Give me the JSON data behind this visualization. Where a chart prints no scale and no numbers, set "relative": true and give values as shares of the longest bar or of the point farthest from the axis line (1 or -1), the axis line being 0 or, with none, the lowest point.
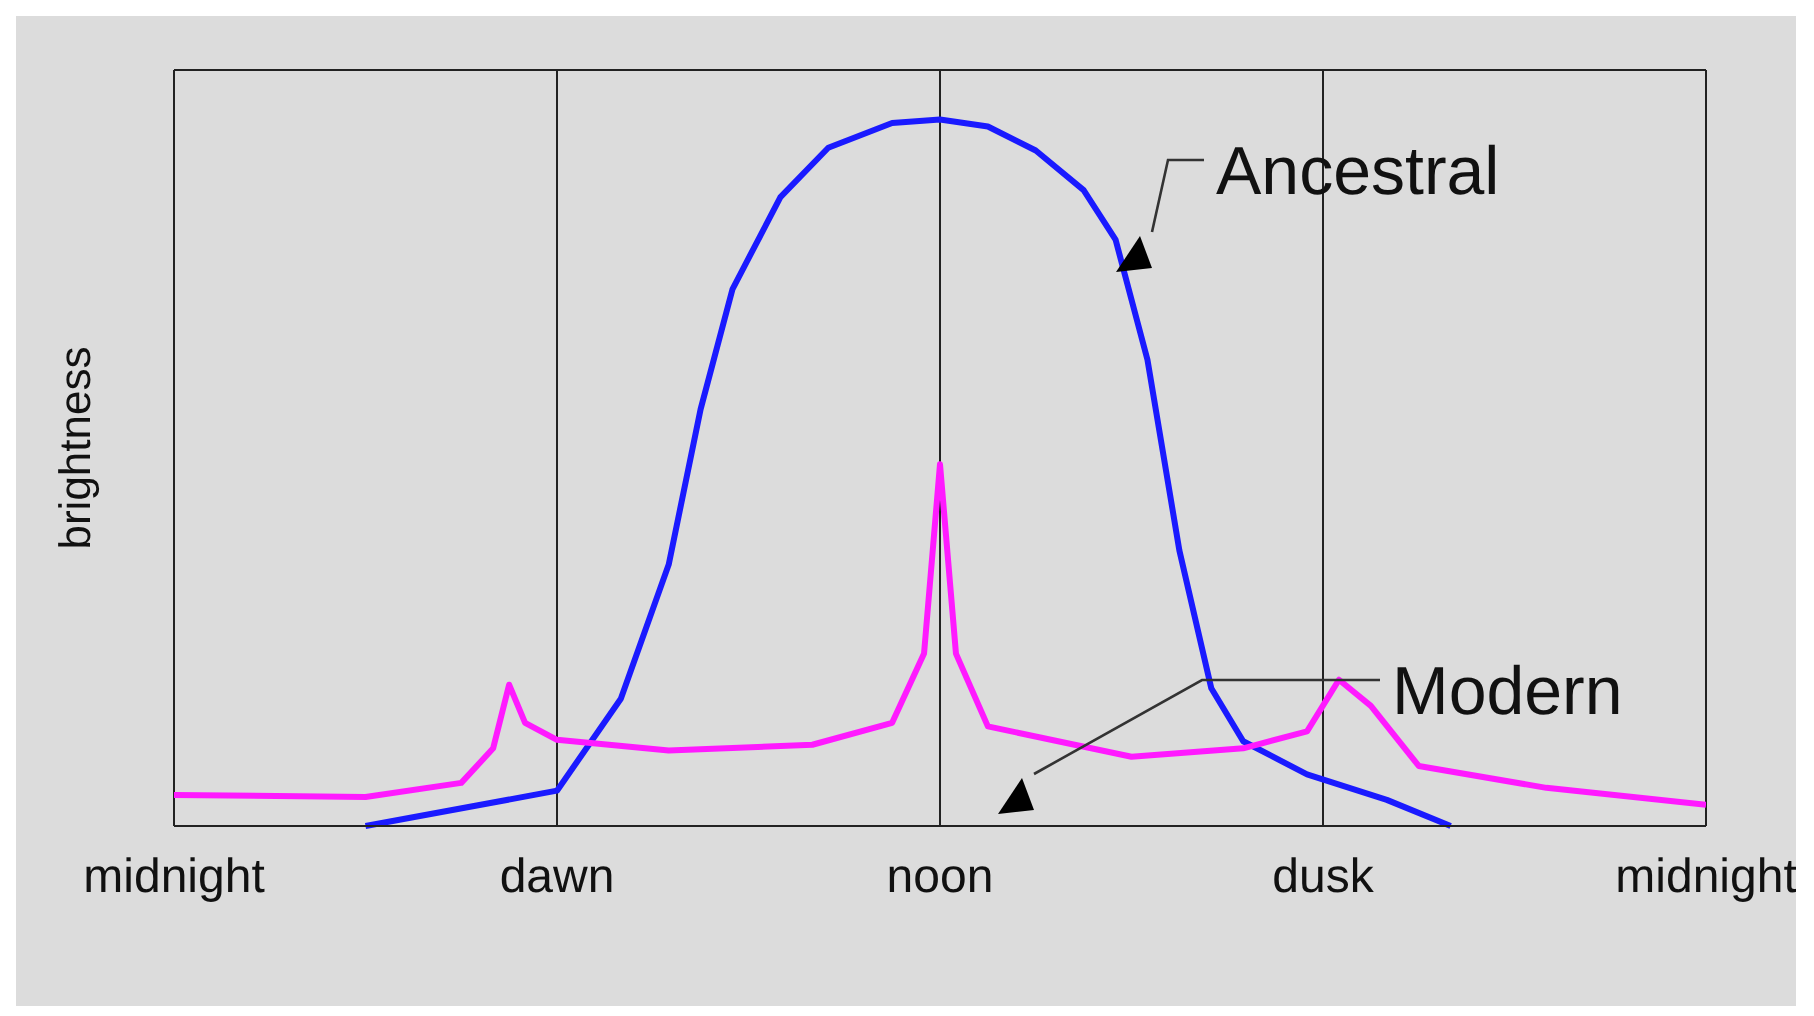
{
  "chart_data": {
    "type": "line",
    "ylabel": "brightness",
    "relative": true,
    "grid": "x",
    "legend": false,
    "marker": "none",
    "line_style": "solid",
    "categories": [
      "midnight",
      null,
      null,
      null,
      null,
      null,
      null,
      null,
      null,
      null,
      null,
      null,
      null,
      null,
      null,
      null,
      null,
      null,
      null,
      null,
      null,
      null,
      null,
      null,
      "dawn",
      null,
      null,
      null,
      null,
      null,
      null,
      null,
      null,
      null,
      null,
      null,
      null,
      null,
      null,
      null,
      null,
      null,
      null,
      null,
      null,
      null,
      null,
      null,
      "noon",
      null,
      null,
      null,
      null,
      null,
      null,
      null,
      null,
      null,
      null,
      null,
      null,
      null,
      null,
      null,
      null,
      null,
      null,
      null,
      null,
      null,
      null,
      null,
      "dusk",
      null,
      null,
      null,
      null,
      null,
      null,
      null,
      null,
      null,
      null,
      null,
      null,
      null,
      null,
      null,
      null,
      null,
      null,
      null,
      null,
      null,
      null,
      null,
      "midnight"
    ],
    "series": [
      {
        "name": "Ancestral",
        "color": "#1a1aff",
        "values": [
          null,
          null,
          null,
          null,
          null,
          null,
          null,
          null,
          null,
          null,
          null,
          null,
          0,
          null,
          null,
          null,
          null,
          null,
          null,
          null,
          null,
          null,
          null,
          null,
          0.05,
          null,
          null,
          null,
          0.18,
          null,
          null,
          0.37,
          null,
          0.59,
          null,
          0.76,
          null,
          null,
          0.89,
          null,
          null,
          0.96,
          null,
          null,
          null,
          0.995,
          null,
          null,
          1,
          null,
          null,
          0.99,
          null,
          null,
          0.956,
          null,
          null,
          0.9,
          null,
          0.83,
          null,
          0.66,
          null,
          0.39,
          null,
          0.195,
          null,
          0.12,
          null,
          null,
          null,
          0.073,
          null,
          null,
          null,
          null,
          0.037,
          null,
          null,
          null,
          0,
          null,
          null,
          null,
          null,
          null,
          null,
          null,
          null,
          null,
          null,
          null,
          null,
          null,
          null,
          null,
          null
        ]
      },
      {
        "name": "Modern",
        "color": "#ff1aff",
        "values": [
          0.044,
          null,
          null,
          null,
          null,
          null,
          null,
          null,
          null,
          null,
          null,
          null,
          0.041,
          null,
          null,
          null,
          null,
          null,
          0.061,
          null,
          0.11,
          0.2,
          0.146,
          null,
          0.122,
          null,
          null,
          null,
          null,
          null,
          null,
          0.107,
          null,
          null,
          null,
          null,
          null,
          null,
          null,
          null,
          0.115,
          null,
          null,
          null,
          null,
          0.146,
          null,
          0.244,
          0.512,
          0.244,
          null,
          0.141,
          null,
          null,
          null,
          null,
          null,
          null,
          null,
          null,
          0.098,
          null,
          null,
          null,
          null,
          null,
          null,
          0.11,
          null,
          null,
          null,
          0.134,
          null,
          0.207,
          null,
          0.17,
          null,
          null,
          0.085,
          null,
          null,
          null,
          null,
          null,
          null,
          null,
          0.054,
          null,
          null,
          null,
          null,
          null,
          null,
          null,
          null,
          null,
          0.03
        ]
      }
    ]
  }
}
